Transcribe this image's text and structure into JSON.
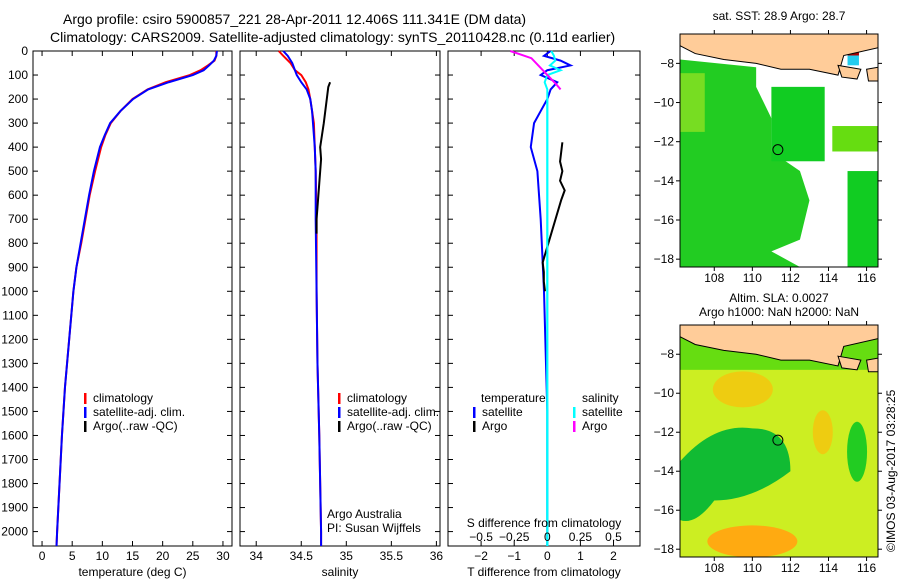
{
  "title_line1": "Argo profile: csiro 5900857_221 28-Apr-2011 12.406S 111.341E (DM data)",
  "title_line2": "Climatology: CARS2009. Satellite-adjusted climatology: synTS_20110428.nc (0.11d earlier)",
  "watermark": "©IMOS 03-Aug-2017 03:28:25",
  "colors": {
    "climatology": "#ff0000",
    "satellite": "#0000ff",
    "argo": "#000000",
    "sal_satellite": "#00ffff",
    "sal_argo": "#ff00ff",
    "land": "#ffcc99"
  },
  "chart_data": [
    {
      "type": "line",
      "name": "temperature",
      "xlabel": "temperature (deg C)",
      "ylabel": "depth",
      "xlim": [
        -1.5,
        31.5
      ],
      "ylim": [
        2060,
        0
      ],
      "xticks": [
        0,
        5,
        10,
        15,
        20,
        25,
        30
      ],
      "yticks": [
        0,
        100,
        200,
        300,
        400,
        500,
        600,
        700,
        800,
        900,
        1000,
        1100,
        1200,
        1300,
        1400,
        1500,
        1600,
        1700,
        1800,
        1900,
        2000
      ],
      "legend": [
        "climatology",
        "satellite-adj. clim.",
        "Argo(..raw -QC)"
      ],
      "depth": [
        0,
        20,
        40,
        60,
        80,
        100,
        130,
        160,
        200,
        250,
        300,
        350,
        400,
        500,
        600,
        700,
        800,
        900,
        1000,
        1200,
        1400,
        1600,
        1800,
        2000,
        2060
      ],
      "series": [
        {
          "name": "climatology",
          "values": [
            28.9,
            28.9,
            28.6,
            27.5,
            26.3,
            24.5,
            20.5,
            17.5,
            15,
            13,
            11.4,
            10.5,
            9.8,
            8.8,
            7.9,
            7.2,
            6.5,
            5.7,
            5.2,
            4.5,
            3.8,
            3.3,
            2.9,
            2.5,
            2.4
          ]
        },
        {
          "name": "satellite-adj. clim.",
          "values": [
            29.0,
            28.9,
            28.5,
            27.7,
            26.8,
            25,
            21,
            17.6,
            15.1,
            13,
            11.3,
            10.4,
            9.6,
            8.6,
            7.8,
            7.1,
            6.4,
            5.7,
            5.2,
            4.5,
            3.8,
            3.3,
            2.9,
            2.5,
            2.4
          ]
        }
      ]
    },
    {
      "type": "line",
      "name": "salinity",
      "xlabel": "salinity",
      "xlim": [
        33.82,
        36.04
      ],
      "ylim": [
        2060,
        0
      ],
      "xticks": [
        34,
        34.5,
        35,
        35.5,
        36
      ],
      "legend": [
        "climatology",
        "satellite-adj. clim.",
        "Argo(..raw -QC)"
      ],
      "annotation": [
        "Argo Australia",
        "PI: Susan Wijffels"
      ],
      "depth": [
        0,
        20,
        50,
        80,
        100,
        130,
        160,
        200,
        250,
        300,
        400,
        500,
        700,
        1000,
        1300,
        1600,
        2000,
        2060
      ],
      "series": [
        {
          "name": "climatology",
          "values": [
            34.25,
            34.3,
            34.38,
            34.43,
            34.5,
            34.55,
            34.58,
            34.6,
            34.62,
            34.64,
            34.65,
            34.66,
            34.67,
            34.67,
            34.68,
            34.7,
            34.72,
            34.72
          ]
        },
        {
          "name": "satellite-adj. clim.",
          "values": [
            34.3,
            34.35,
            34.4,
            34.43,
            34.45,
            34.5,
            34.56,
            34.6,
            34.62,
            34.63,
            34.65,
            34.66,
            34.66,
            34.67,
            34.68,
            34.7,
            34.72,
            34.72
          ]
        },
        {
          "name": "Argo",
          "depth": [
            130,
            150,
            300,
            350,
            400,
            450,
            500,
            550,
            600,
            650,
            700,
            760
          ],
          "values": [
            34.82,
            34.8,
            34.75,
            34.73,
            34.71,
            34.72,
            34.71,
            34.7,
            34.69,
            34.68,
            34.67,
            34.67
          ]
        }
      ]
    },
    {
      "type": "line",
      "name": "difference",
      "xlabel": "T difference from climatology",
      "x2label": "S difference from climatology",
      "xlim": [
        -3,
        2.8
      ],
      "ylim": [
        2060,
        0
      ],
      "xticks": [
        -2,
        -1,
        0,
        1,
        2
      ],
      "x2ticks": [
        -0.5,
        -0.25,
        0,
        0.25,
        0.5
      ],
      "legend_headers": [
        "temperature",
        "salinity"
      ],
      "legend": [
        "satellite",
        "Argo",
        "satellite",
        "Argo"
      ],
      "depth": [
        0,
        20,
        40,
        60,
        80,
        100,
        130,
        160,
        200,
        250,
        300,
        400,
        500,
        700,
        1000,
        1500,
        2000,
        2060
      ],
      "series": [
        {
          "name": "temperature satellite",
          "values": [
            0.1,
            -0.1,
            0.4,
            0.7,
            0,
            -0.2,
            0.3,
            0.1,
            0,
            -0.2,
            -0.4,
            -0.5,
            -0.3,
            -0.2,
            -0.1,
            0,
            0,
            0
          ]
        },
        {
          "name": "salinity satellite",
          "values": [
            0.03,
            0.05,
            0.06,
            0.02,
            0.1,
            0.0,
            -0.02,
            0.0,
            0.0,
            0.0,
            0.0,
            0.0,
            0.0,
            0.0,
            0.0,
            0.0,
            0.0,
            0.0
          ]
        },
        {
          "name": "temperature Argo",
          "depth": [
            380,
            420,
            460,
            500,
            540,
            580,
            620,
            880,
            920,
            960,
            1000
          ],
          "values": [
            1.3,
            1.2,
            1.1,
            1.3,
            1.1,
            1.5,
            1.2,
            -0.4,
            -0.3,
            -0.3,
            -0.2
          ]
        },
        {
          "name": "salinity Argo",
          "depth": [
            0,
            15,
            30,
            140,
            160
          ],
          "values": [
            -0.28,
            -0.2,
            -0.12,
            0.07,
            0.1
          ]
        }
      ]
    }
  ],
  "maps": [
    {
      "title": [
        "sat. SST: 28.9 Argo: 28.7"
      ],
      "lon_ticks": [
        "108",
        "110",
        "112",
        "114",
        "116"
      ],
      "lat_ticks": [
        "-8",
        "-10",
        "-12",
        "-14",
        "-16",
        "-18"
      ],
      "argo_lon": 111.341,
      "argo_lat": -12.406
    },
    {
      "title": [
        "Altim. SLA: 0.0027",
        "Argo h1000: NaN h2000: NaN"
      ],
      "lon_ticks": [
        "108",
        "110",
        "112",
        "114",
        "116"
      ],
      "lat_ticks": [
        "-8",
        "-10",
        "-12",
        "-14",
        "-16",
        "-18"
      ],
      "argo_lon": 111.341,
      "argo_lat": -12.406
    }
  ]
}
